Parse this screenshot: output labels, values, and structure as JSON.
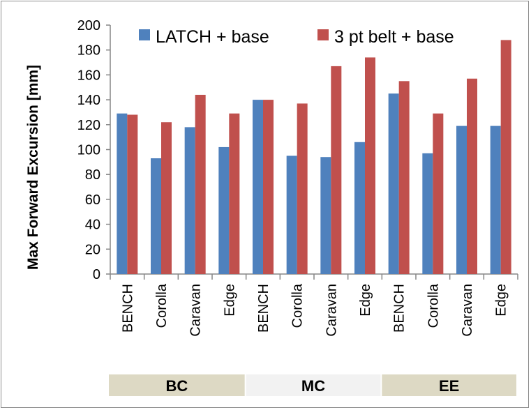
{
  "chart_data": {
    "type": "bar",
    "ylabel": "Max Forward Excursion [mm]",
    "ylim": [
      0,
      200
    ],
    "ytick_step": 20,
    "categories": [
      "BENCH",
      "Corolla",
      "Caravan",
      "Edge",
      "BENCH",
      "Corolla",
      "Caravan",
      "Edge",
      "BENCH",
      "Corolla",
      "Caravan",
      "Edge"
    ],
    "groups": [
      {
        "label": "BC",
        "start": 0,
        "count": 4,
        "color": "#ddd9c4"
      },
      {
        "label": "MC",
        "start": 4,
        "count": 4,
        "color": "#f2f2f2"
      },
      {
        "label": "EE",
        "start": 8,
        "count": 4,
        "color": "#ddd9c4"
      }
    ],
    "series": [
      {
        "name": "LATCH + base",
        "color": "#4f81bd",
        "values": [
          129,
          93,
          118,
          102,
          140,
          95,
          94,
          106,
          145,
          97,
          119,
          119
        ]
      },
      {
        "name": "3 pt belt + base",
        "color": "#c0504d",
        "values": [
          128,
          122,
          144,
          129,
          140,
          137,
          167,
          174,
          155,
          129,
          157,
          188
        ]
      }
    ],
    "legend": "top",
    "grid": false
  }
}
